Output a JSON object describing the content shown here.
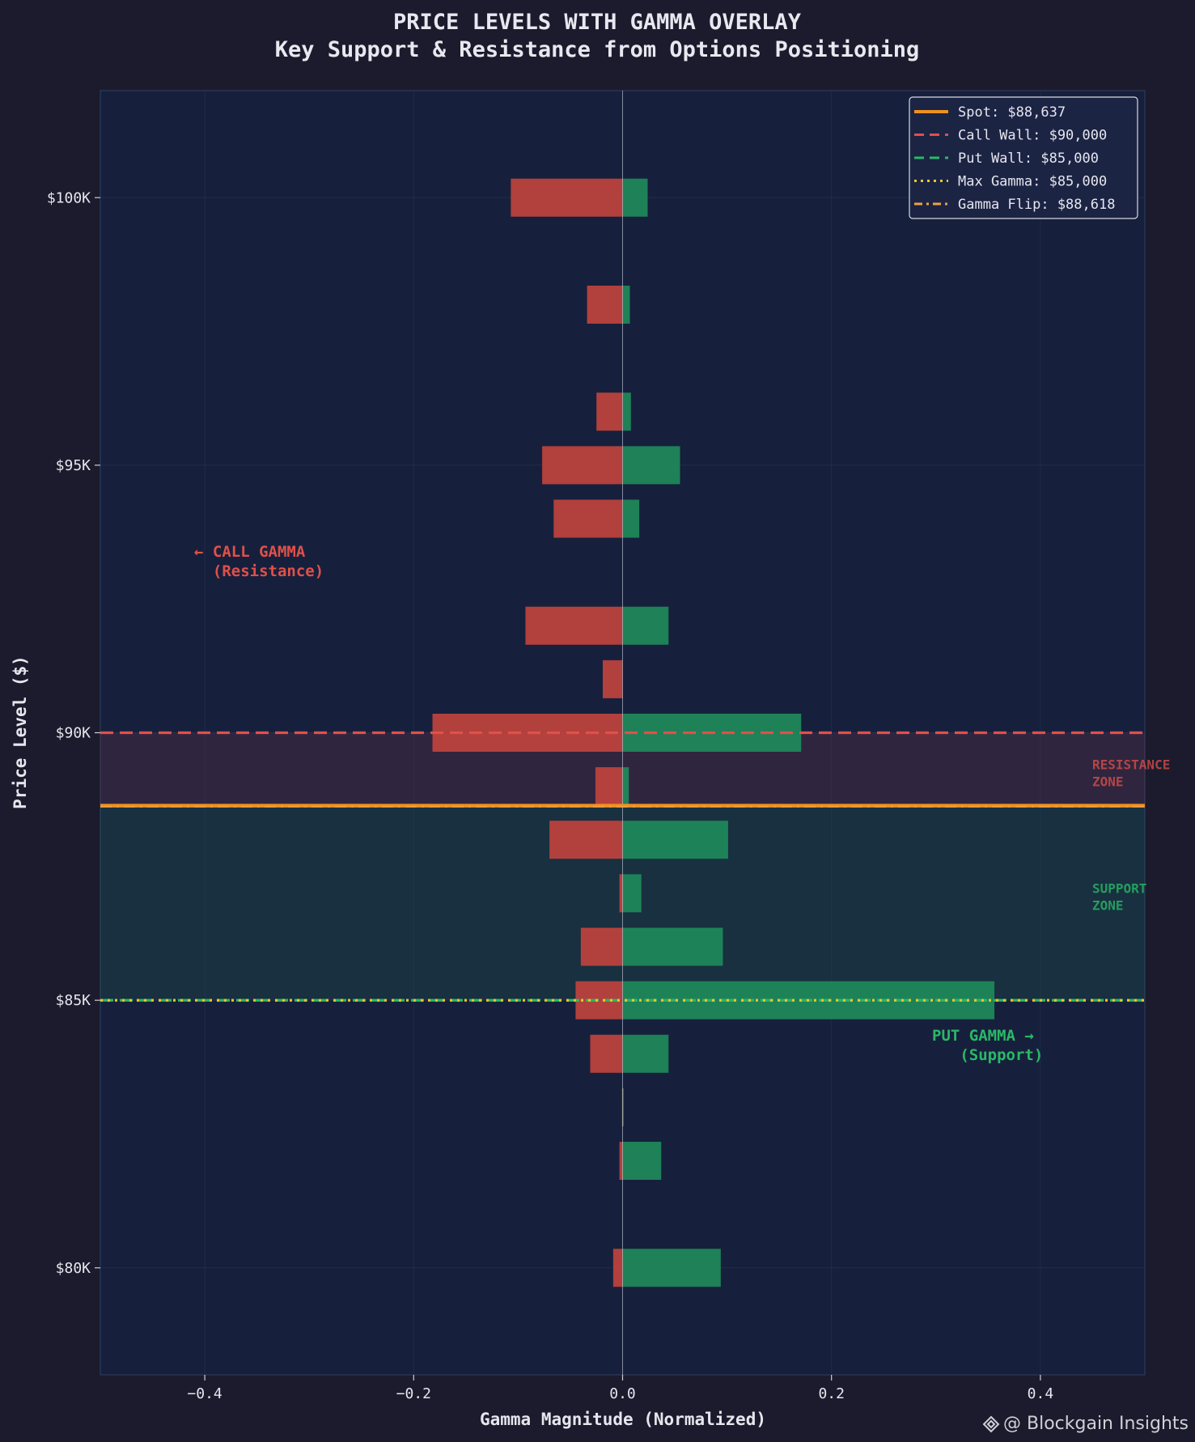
{
  "chart_data": {
    "type": "bar",
    "orientation": "horizontal",
    "title": "PRICE LEVELS WITH GAMMA OVERLAY",
    "subtitle": "Key Support & Resistance from Options Positioning",
    "xlabel": "Gamma Magnitude (Normalized)",
    "ylabel": "Price Level ($)",
    "xlim": [
      -0.5,
      0.5
    ],
    "ylim": [
      78000,
      102000
    ],
    "xticks": [
      -0.4,
      -0.2,
      0.0,
      0.2,
      0.4
    ],
    "xtick_labels": [
      "−0.4",
      "−0.2",
      "0.0",
      "0.2",
      "0.4"
    ],
    "yticks": [
      80000,
      85000,
      90000,
      95000,
      100000
    ],
    "ytick_labels": [
      "$80K",
      "$85K",
      "$90K",
      "$95K",
      "$100K"
    ],
    "grid": true,
    "legend_position": "top-right",
    "price_levels": [
      100000,
      98000,
      96000,
      95000,
      94000,
      92000,
      91000,
      90000,
      89000,
      88000,
      87000,
      86000,
      85000,
      84000,
      83000,
      82000,
      80000
    ],
    "series": [
      {
        "name": "Call Gamma",
        "color": "#c0433d",
        "values": [
          -0.107,
          -0.034,
          -0.025,
          -0.077,
          -0.066,
          -0.093,
          -0.019,
          -0.182,
          -0.026,
          -0.07,
          -0.003,
          -0.04,
          -0.045,
          -0.031,
          -0.0005,
          -0.003,
          -0.009
        ]
      },
      {
        "name": "Put Gamma",
        "color": "#1f8a5a",
        "values": [
          0.024,
          0.007,
          0.008,
          0.055,
          0.016,
          0.044,
          0.0,
          0.171,
          0.006,
          0.101,
          0.018,
          0.096,
          0.356,
          0.044,
          0.001,
          0.037,
          0.094
        ]
      }
    ],
    "reference_lines": [
      {
        "label": "Spot: $88,637",
        "value": 88637,
        "color": "#f0901f",
        "style": "solid"
      },
      {
        "label": "Call Wall: $90,000",
        "value": 90000,
        "color": "#e0504a",
        "style": "dashed"
      },
      {
        "label": "Put Wall: $85,000",
        "value": 85000,
        "color": "#2ab866",
        "style": "dashed"
      },
      {
        "label": "Max Gamma: $85,000",
        "value": 85000,
        "color": "#e8c82a",
        "style": "dotted"
      },
      {
        "label": "Gamma Flip: $88,618",
        "value": 88618,
        "color": "#f0a040",
        "style": "dashdot"
      }
    ],
    "zones": [
      {
        "label_lines": [
          "RESISTANCE",
          "ZONE"
        ],
        "from": 88637,
        "to": 90000,
        "color": "#e0504a"
      },
      {
        "label_lines": [
          "SUPPORT",
          "ZONE"
        ],
        "from": 85000,
        "to": 88637,
        "color": "#2ab866"
      }
    ],
    "annotations": [
      {
        "lines": [
          "← CALL GAMMA",
          "  (Resistance)"
        ],
        "color": "#e0504a"
      },
      {
        "lines": [
          "PUT GAMMA →",
          "   (Support)"
        ],
        "color": "#2ab866"
      }
    ]
  },
  "watermark": {
    "text": "@ Blockgain Insights",
    "icon": "blockgain-logo-icon"
  }
}
